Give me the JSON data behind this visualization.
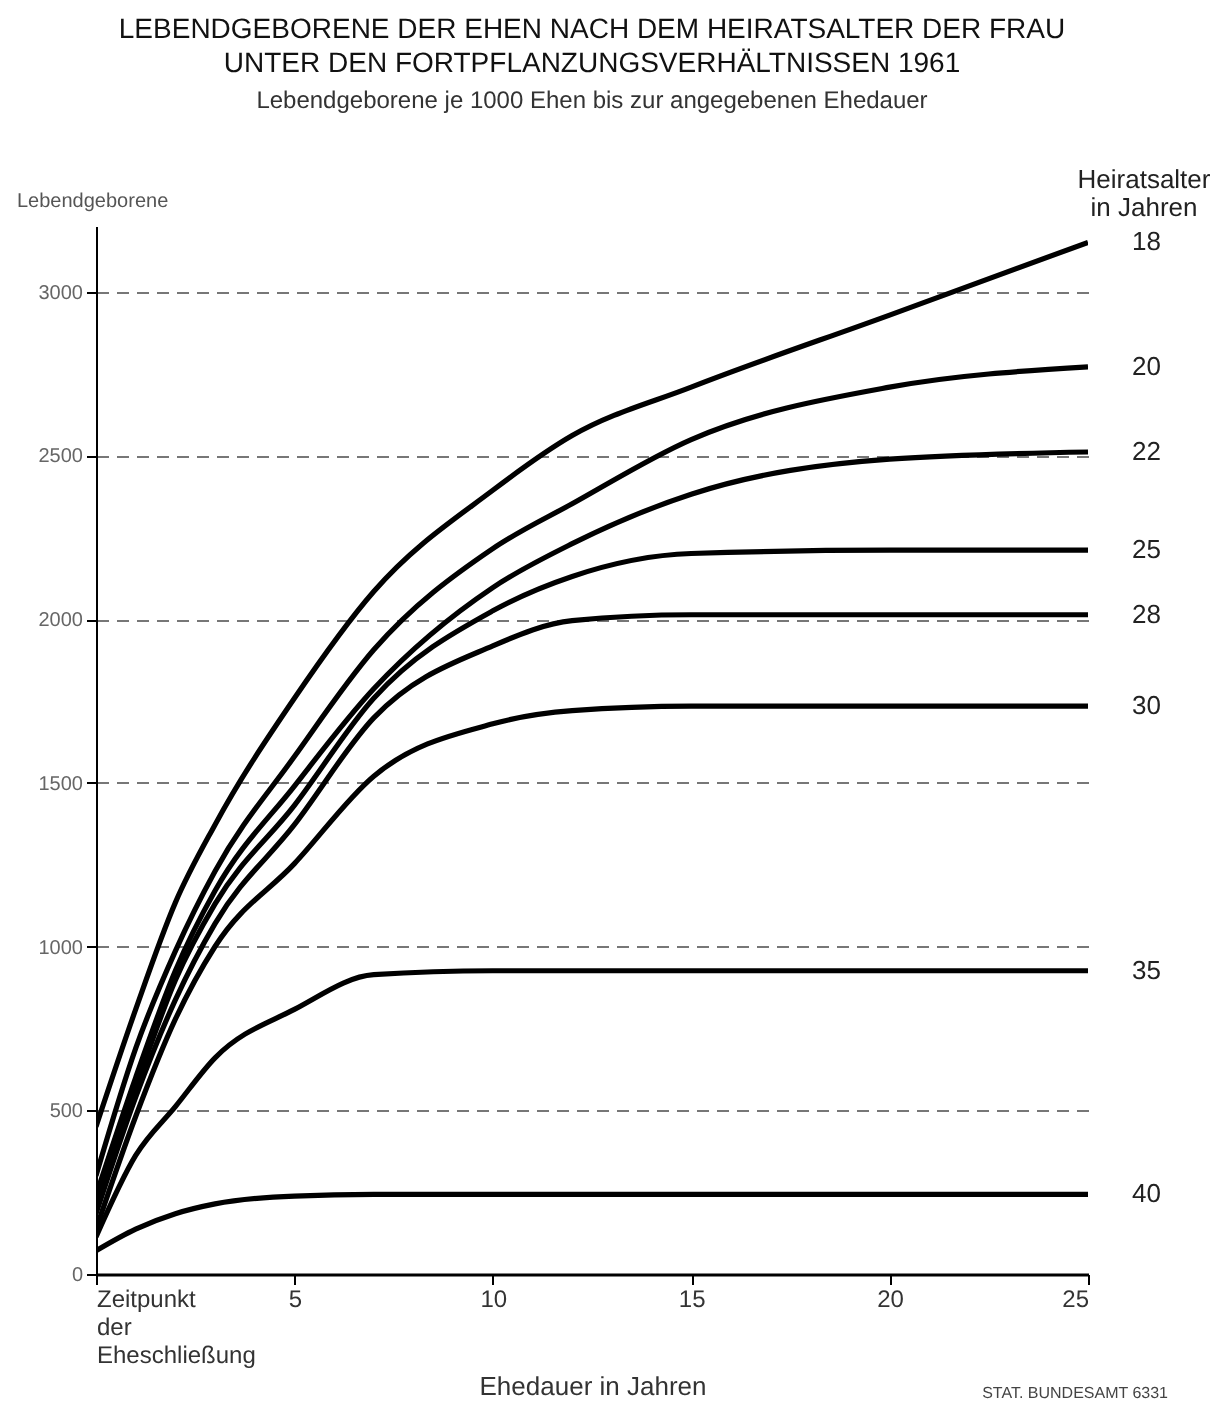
{
  "chart_data": {
    "type": "line",
    "title": "LEBENDGEBORENE DER EHEN NACH DEM HEIRATSALTER DER FRAU\nUNTER DEN FORTPFLANZUNGSVERHÄLTNISSEN 1961",
    "subtitle": "Lebendgeborene je 1000 Ehen bis zur angegebenen Ehedauer",
    "xlabel": "Ehedauer in Jahren",
    "ylabel": "Lebendgeborene",
    "legend_title": "Heiratsalter in Jahren",
    "annotations": [
      "STAT. BUNDESAMT 6331"
    ],
    "x": [
      0,
      1,
      2,
      3,
      5,
      7,
      10,
      12,
      15,
      20,
      25
    ],
    "series": [
      {
        "name": "18",
        "color": "#000000",
        "values": [
          450,
          808,
          1134,
          1372,
          1758,
          2084,
          2393,
          2560,
          2708,
          2928,
          3150
        ]
      },
      {
        "name": "20",
        "color": "#000000",
        "values": [
          300,
          689,
          986,
          1230,
          1580,
          1906,
          2215,
          2352,
          2548,
          2708,
          2770
        ]
      },
      {
        "name": "22",
        "color": "#000000",
        "values": [
          240,
          600,
          926,
          1170,
          1490,
          1787,
          2096,
          2230,
          2381,
          2488,
          2510
        ]
      },
      {
        "name": "25",
        "color": "#000000",
        "values": [
          214,
          570,
          897,
          1130,
          1431,
          1758,
          2025,
          2130,
          2200,
          2210,
          2210
        ]
      },
      {
        "name": "28",
        "color": "#000000",
        "values": [
          184,
          540,
          837,
          1070,
          1372,
          1698,
          1918,
          1995,
          2013,
          2013,
          2013
        ]
      },
      {
        "name": "30",
        "color": "#000000",
        "values": [
          137,
          481,
          778,
          1000,
          1253,
          1520,
          1680,
          1720,
          1734,
          1734,
          1734
        ]
      },
      {
        "name": "35",
        "color": "#000000",
        "values": [
          113,
          362,
          511,
          660,
          808,
          914,
          926,
          926,
          926,
          926,
          926
        ]
      },
      {
        "name": "40",
        "color": "#000000",
        "values": [
          71,
          137,
          184,
          214,
          238,
          243,
          243,
          243,
          243,
          243,
          243
        ]
      }
    ],
    "xlim": [
      0,
      25
    ],
    "xticks": [
      {
        "value": 0,
        "label": "Zeitpunkt der Eheschließung"
      },
      5,
      10,
      15,
      20,
      25
    ],
    "ylim": [
      0,
      3200
    ],
    "yticks": [
      0,
      500,
      1000,
      1500,
      2000,
      2500,
      3000
    ],
    "grid": "y",
    "marker": "none",
    "line_style": "solid"
  }
}
